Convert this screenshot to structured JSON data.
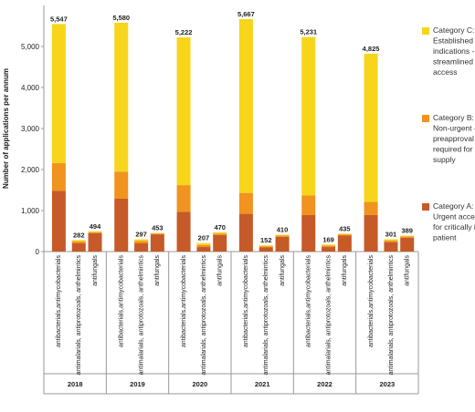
{
  "chart_data": {
    "type": "bar",
    "stacked": true,
    "ylabel": "Number of applications per annum",
    "ylim": [
      0,
      6000
    ],
    "yticks": [
      0,
      1000,
      2000,
      3000,
      4000,
      5000
    ],
    "ytick_labels": [
      "0",
      "1,000",
      "2,000",
      "3,000",
      "4,000",
      "5,000"
    ],
    "years": [
      "2018",
      "2019",
      "2020",
      "2021",
      "2022",
      "2023"
    ],
    "drug_classes": [
      "antibacterials,antimycobacterials",
      "antimalarials, antiprotozoals, anthelmintics",
      "antifungals"
    ],
    "series": [
      {
        "name": "Category A: Urgent access for critically ill patient",
        "color": "#C65A28",
        "values": [
          1480,
          200,
          450,
          1290,
          200,
          420,
          970,
          110,
          400,
          920,
          100,
          360,
          890,
          110,
          390,
          890,
          230,
          340
        ]
      },
      {
        "name": "Category B: Non-urgent - preapproval required for supply",
        "color": "#F0931F",
        "values": [
          680,
          50,
          25,
          660,
          60,
          20,
          650,
          50,
          40,
          510,
          30,
          30,
          480,
          40,
          30,
          320,
          40,
          30
        ]
      },
      {
        "name": "Category C: Established indications - streamlined access",
        "color": "#F7D51A",
        "values": [
          3387,
          32,
          19,
          3630,
          37,
          13,
          3602,
          47,
          30,
          4237,
          22,
          20,
          3861,
          19,
          15,
          3615,
          31,
          19
        ]
      }
    ],
    "totals": [
      "5,547",
      "282",
      "494",
      "5,580",
      "297",
      "453",
      "5,222",
      "207",
      "470",
      "5,667",
      "152",
      "410",
      "5,231",
      "169",
      "435",
      "4,825",
      "301",
      "389"
    ],
    "legend_position": "right",
    "grid": false
  }
}
